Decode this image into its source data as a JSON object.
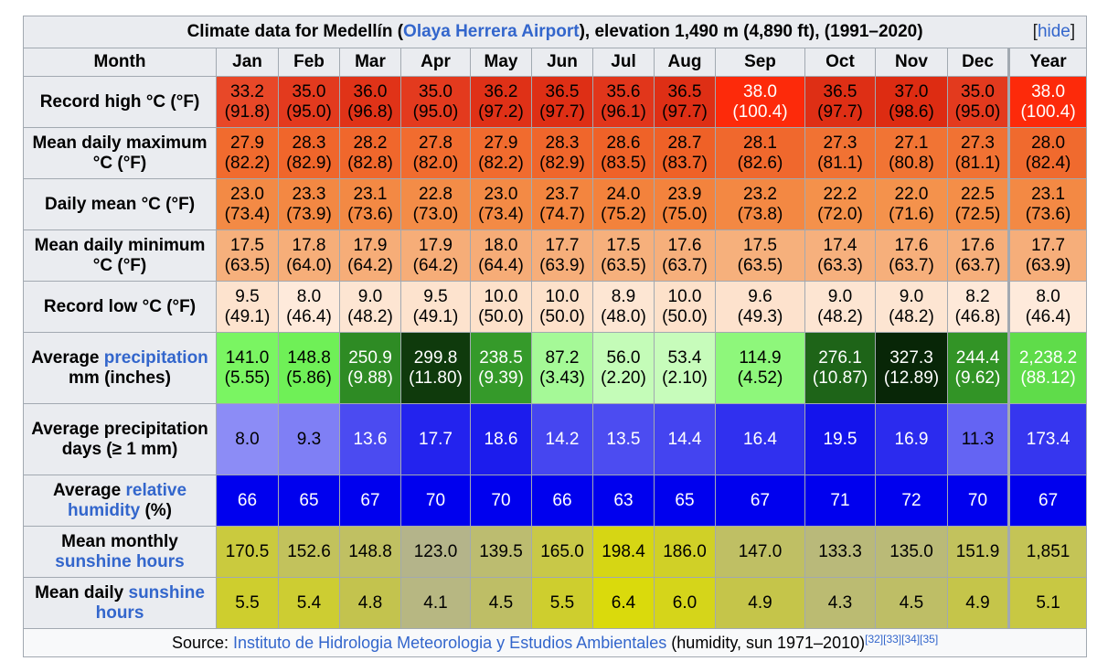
{
  "caption": {
    "prefix": "Climate data for Medellín (",
    "airport_link": "Olaya Herrera Airport",
    "suffix": "), elevation 1,490 m (4,890 ft), (1991–2020)",
    "hide_open": "[",
    "hide_label": "hide",
    "hide_close": "]"
  },
  "header": {
    "month_label": "Month",
    "months": [
      "Jan",
      "Feb",
      "Mar",
      "Apr",
      "May",
      "Jun",
      "Jul",
      "Aug",
      "Sep",
      "Oct",
      "Nov",
      "Dec"
    ],
    "year_label": "Year"
  },
  "rows": [
    {
      "label_parts": [
        {
          "text": "Record high °C (°F)",
          "link": false
        }
      ],
      "cells": [
        {
          "top": "33.2",
          "bottom": "(91.8)",
          "bg": "#e84828",
          "fg": "#000000"
        },
        {
          "top": "35.0",
          "bottom": "(95.0)",
          "bg": "#e33a1e",
          "fg": "#000000"
        },
        {
          "top": "36.0",
          "bottom": "(96.8)",
          "bg": "#e03318",
          "fg": "#000000"
        },
        {
          "top": "35.0",
          "bottom": "(95.0)",
          "bg": "#e33a1e",
          "fg": "#000000"
        },
        {
          "top": "36.2",
          "bottom": "(97.2)",
          "bg": "#df3117",
          "fg": "#000000"
        },
        {
          "top": "36.5",
          "bottom": "(97.7)",
          "bg": "#de2f15",
          "fg": "#000000"
        },
        {
          "top": "35.6",
          "bottom": "(96.1)",
          "bg": "#e1361b",
          "fg": "#000000"
        },
        {
          "top": "36.5",
          "bottom": "(97.7)",
          "bg": "#de2f15",
          "fg": "#000000"
        },
        {
          "top": "38.0",
          "bottom": "(100.4)",
          "bg": "#fd2a0a",
          "fg": "#ffffff"
        },
        {
          "top": "36.5",
          "bottom": "(97.7)",
          "bg": "#de2f15",
          "fg": "#000000"
        },
        {
          "top": "37.0",
          "bottom": "(98.6)",
          "bg": "#dd2c12",
          "fg": "#000000"
        },
        {
          "top": "35.0",
          "bottom": "(95.0)",
          "bg": "#e33a1e",
          "fg": "#000000"
        },
        {
          "top": "38.0",
          "bottom": "(100.4)",
          "bg": "#fd2a0a",
          "fg": "#ffffff"
        }
      ]
    },
    {
      "label_parts": [
        {
          "text": "Mean daily maximum °C (°F)",
          "link": false
        }
      ],
      "cells": [
        {
          "top": "27.9",
          "bottom": "(82.2)",
          "bg": "#f16b2e",
          "fg": "#000000"
        },
        {
          "top": "28.3",
          "bottom": "(82.9)",
          "bg": "#f0662b",
          "fg": "#000000"
        },
        {
          "top": "28.2",
          "bottom": "(82.8)",
          "bg": "#f0672c",
          "fg": "#000000"
        },
        {
          "top": "27.8",
          "bottom": "(82.0)",
          "bg": "#f16c2f",
          "fg": "#000000"
        },
        {
          "top": "27.9",
          "bottom": "(82.2)",
          "bg": "#f16b2e",
          "fg": "#000000"
        },
        {
          "top": "28.3",
          "bottom": "(82.9)",
          "bg": "#f0662b",
          "fg": "#000000"
        },
        {
          "top": "28.6",
          "bottom": "(83.5)",
          "bg": "#ef6228",
          "fg": "#000000"
        },
        {
          "top": "28.7",
          "bottom": "(83.7)",
          "bg": "#ef6127",
          "fg": "#000000"
        },
        {
          "top": "28.1",
          "bottom": "(82.6)",
          "bg": "#f0682d",
          "fg": "#000000"
        },
        {
          "top": "27.3",
          "bottom": "(81.1)",
          "bg": "#f17233",
          "fg": "#000000"
        },
        {
          "top": "27.1",
          "bottom": "(80.8)",
          "bg": "#f17434",
          "fg": "#000000"
        },
        {
          "top": "27.3",
          "bottom": "(81.1)",
          "bg": "#f17233",
          "fg": "#000000"
        },
        {
          "top": "28.0",
          "bottom": "(82.4)",
          "bg": "#f06a2e",
          "fg": "#000000"
        }
      ]
    },
    {
      "label_parts": [
        {
          "text": "Daily mean °C (°F)",
          "link": false
        }
      ],
      "cells": [
        {
          "top": "23.0",
          "bottom": "(73.4)",
          "bg": "#f38a45",
          "fg": "#000000"
        },
        {
          "top": "23.3",
          "bottom": "(73.9)",
          "bg": "#f38843",
          "fg": "#000000"
        },
        {
          "top": "23.1",
          "bottom": "(73.6)",
          "bg": "#f38944",
          "fg": "#000000"
        },
        {
          "top": "22.8",
          "bottom": "(73.0)",
          "bg": "#f38c47",
          "fg": "#000000"
        },
        {
          "top": "23.0",
          "bottom": "(73.4)",
          "bg": "#f38a45",
          "fg": "#000000"
        },
        {
          "top": "23.7",
          "bottom": "(74.7)",
          "bg": "#f3853f",
          "fg": "#000000"
        },
        {
          "top": "24.0",
          "bottom": "(75.2)",
          "bg": "#f3823c",
          "fg": "#000000"
        },
        {
          "top": "23.9",
          "bottom": "(75.0)",
          "bg": "#f3833d",
          "fg": "#000000"
        },
        {
          "top": "23.2",
          "bottom": "(73.8)",
          "bg": "#f38843",
          "fg": "#000000"
        },
        {
          "top": "22.2",
          "bottom": "(72.0)",
          "bg": "#f4914b",
          "fg": "#000000"
        },
        {
          "top": "22.0",
          "bottom": "(71.6)",
          "bg": "#f4924c",
          "fg": "#000000"
        },
        {
          "top": "22.5",
          "bottom": "(72.5)",
          "bg": "#f48e48",
          "fg": "#000000"
        },
        {
          "top": "23.1",
          "bottom": "(73.6)",
          "bg": "#f38944",
          "fg": "#000000"
        }
      ]
    },
    {
      "label_parts": [
        {
          "text": "Mean daily minimum °C (°F)",
          "link": false
        }
      ],
      "cells": [
        {
          "top": "17.5",
          "bottom": "(63.5)",
          "bg": "#f6b07c",
          "fg": "#000000"
        },
        {
          "top": "17.8",
          "bottom": "(64.0)",
          "bg": "#f6ae79",
          "fg": "#000000"
        },
        {
          "top": "17.9",
          "bottom": "(64.2)",
          "bg": "#f6ad78",
          "fg": "#000000"
        },
        {
          "top": "17.9",
          "bottom": "(64.2)",
          "bg": "#f6ad78",
          "fg": "#000000"
        },
        {
          "top": "18.0",
          "bottom": "(64.4)",
          "bg": "#f6ac77",
          "fg": "#000000"
        },
        {
          "top": "17.7",
          "bottom": "(63.9)",
          "bg": "#f6ae7a",
          "fg": "#000000"
        },
        {
          "top": "17.5",
          "bottom": "(63.5)",
          "bg": "#f6b07c",
          "fg": "#000000"
        },
        {
          "top": "17.6",
          "bottom": "(63.7)",
          "bg": "#f6af7b",
          "fg": "#000000"
        },
        {
          "top": "17.5",
          "bottom": "(63.5)",
          "bg": "#f6b07c",
          "fg": "#000000"
        },
        {
          "top": "17.4",
          "bottom": "(63.3)",
          "bg": "#f6b07d",
          "fg": "#000000"
        },
        {
          "top": "17.6",
          "bottom": "(63.7)",
          "bg": "#f6af7b",
          "fg": "#000000"
        },
        {
          "top": "17.6",
          "bottom": "(63.7)",
          "bg": "#f6af7b",
          "fg": "#000000"
        },
        {
          "top": "17.7",
          "bottom": "(63.9)",
          "bg": "#f6ae7a",
          "fg": "#000000"
        }
      ]
    },
    {
      "label_parts": [
        {
          "text": "Record low °C (°F)",
          "link": false
        }
      ],
      "cells": [
        {
          "top": "9.5",
          "bottom": "(49.1)",
          "bg": "#fde3ce",
          "fg": "#000000"
        },
        {
          "top": "8.0",
          "bottom": "(46.4)",
          "bg": "#feeadb",
          "fg": "#000000"
        },
        {
          "top": "9.0",
          "bottom": "(48.2)",
          "bg": "#fde5d2",
          "fg": "#000000"
        },
        {
          "top": "9.5",
          "bottom": "(49.1)",
          "bg": "#fde3ce",
          "fg": "#000000"
        },
        {
          "top": "10.0",
          "bottom": "(50.0)",
          "bg": "#fde1ca",
          "fg": "#000000"
        },
        {
          "top": "10.0",
          "bottom": "(50.0)",
          "bg": "#fde1ca",
          "fg": "#000000"
        },
        {
          "top": "8.9",
          "bottom": "(48.0)",
          "bg": "#fde6d3",
          "fg": "#000000"
        },
        {
          "top": "10.0",
          "bottom": "(50.0)",
          "bg": "#fde1ca",
          "fg": "#000000"
        },
        {
          "top": "9.6",
          "bottom": "(49.3)",
          "bg": "#fde2cd",
          "fg": "#000000"
        },
        {
          "top": "9.0",
          "bottom": "(48.2)",
          "bg": "#fde5d2",
          "fg": "#000000"
        },
        {
          "top": "9.0",
          "bottom": "(48.2)",
          "bg": "#fde5d2",
          "fg": "#000000"
        },
        {
          "top": "8.2",
          "bottom": "(46.8)",
          "bg": "#fee9d9",
          "fg": "#000000"
        },
        {
          "top": "8.0",
          "bottom": "(46.4)",
          "bg": "#feeadb",
          "fg": "#000000"
        }
      ]
    },
    {
      "label_parts": [
        {
          "text": "Average ",
          "link": false
        },
        {
          "text": "precipitation",
          "link": true
        },
        {
          "text": " mm (inches)",
          "link": false
        }
      ],
      "cells": [
        {
          "top": "141.0",
          "bottom": "(5.55)",
          "bg": "#7af562",
          "fg": "#000000"
        },
        {
          "top": "148.8",
          "bottom": "(5.86)",
          "bg": "#6ff057",
          "fg": "#000000"
        },
        {
          "top": "250.9",
          "bottom": "(9.88)",
          "bg": "#2e8b24",
          "fg": "#ffffff"
        },
        {
          "top": "299.8",
          "bottom": "(11.80)",
          "bg": "#0f3a0c",
          "fg": "#ffffff"
        },
        {
          "top": "238.5",
          "bottom": "(9.39)",
          "bg": "#359a2a",
          "fg": "#ffffff"
        },
        {
          "top": "87.2",
          "bottom": "(3.43)",
          "bg": "#a5f997",
          "fg": "#000000"
        },
        {
          "top": "56.0",
          "bottom": "(2.20)",
          "bg": "#c4fcb8",
          "fg": "#000000"
        },
        {
          "top": "53.4",
          "bottom": "(2.10)",
          "bg": "#c7fcbb",
          "fg": "#000000"
        },
        {
          "top": "114.9",
          "bottom": "(4.52)",
          "bg": "#8ef77b",
          "fg": "#000000"
        },
        {
          "top": "276.1",
          "bottom": "(10.87)",
          "bg": "#1e6418",
          "fg": "#ffffff"
        },
        {
          "top": "327.3",
          "bottom": "(12.89)",
          "bg": "#082607",
          "fg": "#ffffff"
        },
        {
          "top": "244.4",
          "bottom": "(9.62)",
          "bg": "#329426",
          "fg": "#ffffff"
        },
        {
          "top": "2,238.2",
          "bottom": "(88.12)",
          "bg": "#5fdc4a",
          "fg": "#ffffff"
        }
      ]
    },
    {
      "label_parts": [
        {
          "text": "Average precipitation days (≥ 1 mm)",
          "link": false
        }
      ],
      "cells": [
        {
          "top": "8.0",
          "bottom": "",
          "bg": "#8c8cf6",
          "fg": "#000000"
        },
        {
          "top": "9.3",
          "bottom": "",
          "bg": "#7f7ff5",
          "fg": "#000000"
        },
        {
          "top": "13.6",
          "bottom": "",
          "bg": "#4b4bf1",
          "fg": "#ffffff"
        },
        {
          "top": "17.7",
          "bottom": "",
          "bg": "#2323ee",
          "fg": "#ffffff"
        },
        {
          "top": "18.6",
          "bottom": "",
          "bg": "#1c1ced",
          "fg": "#ffffff"
        },
        {
          "top": "14.2",
          "bottom": "",
          "bg": "#4646f0",
          "fg": "#ffffff"
        },
        {
          "top": "13.5",
          "bottom": "",
          "bg": "#4c4cf1",
          "fg": "#ffffff"
        },
        {
          "top": "14.4",
          "bottom": "",
          "bg": "#4444f0",
          "fg": "#ffffff"
        },
        {
          "top": "16.4",
          "bottom": "",
          "bg": "#3030ef",
          "fg": "#ffffff"
        },
        {
          "top": "19.5",
          "bottom": "",
          "bg": "#1414ec",
          "fg": "#ffffff"
        },
        {
          "top": "16.9",
          "bottom": "",
          "bg": "#2b2bee",
          "fg": "#ffffff"
        },
        {
          "top": "11.3",
          "bottom": "",
          "bg": "#6464f3",
          "fg": "#000000"
        },
        {
          "top": "173.4",
          "bottom": "",
          "bg": "#3636ef",
          "fg": "#ffffff"
        }
      ]
    },
    {
      "label_parts": [
        {
          "text": "Average ",
          "link": false
        },
        {
          "text": "relative humidity",
          "link": true
        },
        {
          "text": " (%)",
          "link": false
        }
      ],
      "cells": [
        {
          "top": "66",
          "bottom": "",
          "bg": "#0000ee",
          "fg": "#ffffff"
        },
        {
          "top": "65",
          "bottom": "",
          "bg": "#0000ee",
          "fg": "#ffffff"
        },
        {
          "top": "67",
          "bottom": "",
          "bg": "#0000ee",
          "fg": "#ffffff"
        },
        {
          "top": "70",
          "bottom": "",
          "bg": "#0000ee",
          "fg": "#ffffff"
        },
        {
          "top": "70",
          "bottom": "",
          "bg": "#0000ee",
          "fg": "#ffffff"
        },
        {
          "top": "66",
          "bottom": "",
          "bg": "#0000ee",
          "fg": "#ffffff"
        },
        {
          "top": "63",
          "bottom": "",
          "bg": "#0000ee",
          "fg": "#ffffff"
        },
        {
          "top": "65",
          "bottom": "",
          "bg": "#0000ee",
          "fg": "#ffffff"
        },
        {
          "top": "67",
          "bottom": "",
          "bg": "#0000ee",
          "fg": "#ffffff"
        },
        {
          "top": "71",
          "bottom": "",
          "bg": "#0000ee",
          "fg": "#ffffff"
        },
        {
          "top": "72",
          "bottom": "",
          "bg": "#0000ee",
          "fg": "#ffffff"
        },
        {
          "top": "70",
          "bottom": "",
          "bg": "#0000ee",
          "fg": "#ffffff"
        },
        {
          "top": "67",
          "bottom": "",
          "bg": "#0000ee",
          "fg": "#ffffff"
        }
      ]
    },
    {
      "label_parts": [
        {
          "text": "Mean monthly ",
          "link": false
        },
        {
          "text": "sunshine hours",
          "link": true
        }
      ],
      "cells": [
        {
          "top": "170.5",
          "bottom": "",
          "bg": "#caca3e",
          "fg": "#000000"
        },
        {
          "top": "152.6",
          "bottom": "",
          "bg": "#c2c25c",
          "fg": "#000000"
        },
        {
          "top": "148.8",
          "bottom": "",
          "bg": "#c0c062",
          "fg": "#000000"
        },
        {
          "top": "123.0",
          "bottom": "",
          "bg": "#b4b48a",
          "fg": "#000000"
        },
        {
          "top": "139.5",
          "bottom": "",
          "bg": "#bcbc70",
          "fg": "#000000"
        },
        {
          "top": "165.0",
          "bottom": "",
          "bg": "#c8c848",
          "fg": "#000000"
        },
        {
          "top": "198.4",
          "bottom": "",
          "bg": "#d6d614",
          "fg": "#000000"
        },
        {
          "top": "186.0",
          "bottom": "",
          "bg": "#d0d027",
          "fg": "#000000"
        },
        {
          "top": "147.0",
          "bottom": "",
          "bg": "#bfbf64",
          "fg": "#000000"
        },
        {
          "top": "133.3",
          "bottom": "",
          "bg": "#b9b97a",
          "fg": "#000000"
        },
        {
          "top": "135.0",
          "bottom": "",
          "bg": "#baba77",
          "fg": "#000000"
        },
        {
          "top": "151.9",
          "bottom": "",
          "bg": "#c2c25d",
          "fg": "#000000"
        },
        {
          "top": "1,851",
          "bottom": "",
          "bg": "#c4c456",
          "fg": "#000000"
        }
      ]
    },
    {
      "label_parts": [
        {
          "text": "Mean daily ",
          "link": false
        },
        {
          "text": "sunshine hours",
          "link": true
        }
      ],
      "cells": [
        {
          "top": "5.5",
          "bottom": "",
          "bg": "#cece2e",
          "fg": "#000000"
        },
        {
          "top": "5.4",
          "bottom": "",
          "bg": "#cdcd32",
          "fg": "#000000"
        },
        {
          "top": "4.8",
          "bottom": "",
          "bg": "#c3c34e",
          "fg": "#000000"
        },
        {
          "top": "4.1",
          "bottom": "",
          "bg": "#b7b782",
          "fg": "#000000"
        },
        {
          "top": "4.5",
          "bottom": "",
          "bg": "#bebe66",
          "fg": "#000000"
        },
        {
          "top": "5.5",
          "bottom": "",
          "bg": "#cece2e",
          "fg": "#000000"
        },
        {
          "top": "6.4",
          "bottom": "",
          "bg": "#dada0c",
          "fg": "#000000"
        },
        {
          "top": "6.0",
          "bottom": "",
          "bg": "#d5d51a",
          "fg": "#000000"
        },
        {
          "top": "4.9",
          "bottom": "",
          "bg": "#c5c54a",
          "fg": "#000000"
        },
        {
          "top": "4.3",
          "bottom": "",
          "bg": "#bbbb72",
          "fg": "#000000"
        },
        {
          "top": "4.5",
          "bottom": "",
          "bg": "#bebe66",
          "fg": "#000000"
        },
        {
          "top": "4.9",
          "bottom": "",
          "bg": "#c5c54a",
          "fg": "#000000"
        },
        {
          "top": "5.1",
          "bottom": "",
          "bg": "#c8c843",
          "fg": "#000000"
        }
      ]
    }
  ],
  "source": {
    "prefix": "Source: ",
    "link": "Instituto de Hidrologia Meteorologia y Estudios Ambientales",
    "suffix": " (humidity, sun 1971–2010)",
    "refs": "[32][33][34][35]"
  }
}
